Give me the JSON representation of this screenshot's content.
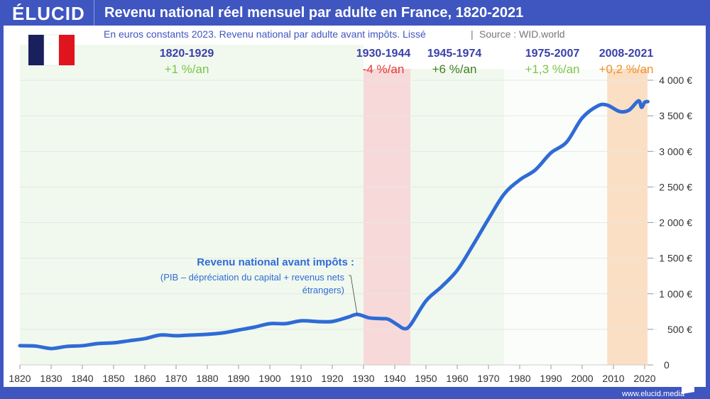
{
  "header": {
    "logo": "ÉLUCID",
    "title": "Revenu national réel mensuel par adulte en France, 1820-2021"
  },
  "footer": {
    "url": "www.elucid.media"
  },
  "colors": {
    "frame": "#3f56c0",
    "line": "#2f6bd6",
    "period_label": "#3a3fa8",
    "green_band": "#f1f9ee",
    "pink_band": "#f8d9da",
    "orange_band": "#fbdfc4"
  },
  "chart_data": {
    "type": "line",
    "title": "Revenu national réel mensuel par adulte en France, 1820-2021",
    "subtitle": "En euros constants 2023. Revenu national par adulte avant impôts. Lissé",
    "source": "Source : WID.world",
    "xlim": [
      1820,
      2021
    ],
    "ylim": [
      0,
      4000
    ],
    "x_ticks": [
      "1820",
      "1830",
      "1840",
      "1850",
      "1860",
      "1870",
      "1880",
      "1890",
      "1900",
      "1910",
      "1920",
      "1930",
      "1940",
      "1950",
      "1960",
      "1970",
      "1980",
      "1990",
      "2000",
      "2010",
      "2020"
    ],
    "y_ticks": [
      "0",
      "500 €",
      "1 000 €",
      "1 500 €",
      "2 000 €",
      "2 500 €",
      "3 000 €",
      "3 500 €",
      "4 000 €"
    ],
    "grid": true,
    "annotation": {
      "title": "Revenu national avant impôts :",
      "line1": "(PIB – dépréciation du capital + revenus nets",
      "line2": "étrangers)"
    },
    "periods": [
      {
        "label": "1820-1929",
        "rate": "+1 %/an",
        "start": 1820,
        "end": 1930,
        "band": "green",
        "rate_color": "#7cc44a"
      },
      {
        "label": "1930-1944",
        "rate": "-4 %/an",
        "start": 1930,
        "end": 1945,
        "band": "pink",
        "rate_color": "#e03a3a"
      },
      {
        "label": "1945-1974",
        "rate": "+6 %/an",
        "start": 1945,
        "end": 1975,
        "band": "green",
        "rate_color": "#3f7d1f"
      },
      {
        "label": "1975-2007",
        "rate": "+1,3 %/an",
        "start": 1975,
        "end": 2008,
        "band": "white",
        "rate_color": "#7cc44a"
      },
      {
        "label": "2008-2021",
        "rate": "+0,2 %/an",
        "start": 2008,
        "end": 2021,
        "band": "orange",
        "rate_color": "#f0902a"
      }
    ],
    "series": [
      {
        "x": [
          1820,
          1825,
          1830,
          1835,
          1840,
          1845,
          1850,
          1855,
          1860,
          1865,
          1870,
          1875,
          1880,
          1885,
          1890,
          1895,
          1900,
          1905,
          1910,
          1915,
          1920,
          1925,
          1928,
          1932,
          1936,
          1938,
          1941,
          1943,
          1945,
          1950,
          1955,
          1960,
          1965,
          1970,
          1975,
          1980,
          1985,
          1990,
          1995,
          2000,
          2005,
          2008,
          2012,
          2015,
          2018,
          2019,
          2020,
          2021
        ],
        "y": [
          270,
          265,
          230,
          260,
          270,
          300,
          310,
          340,
          370,
          420,
          410,
          420,
          430,
          450,
          490,
          530,
          580,
          580,
          620,
          610,
          610,
          670,
          710,
          660,
          650,
          640,
          560,
          510,
          560,
          900,
          1100,
          1330,
          1680,
          2050,
          2400,
          2600,
          2740,
          2980,
          3130,
          3470,
          3640,
          3650,
          3560,
          3580,
          3710,
          3620,
          3690,
          3700
        ]
      }
    ]
  }
}
